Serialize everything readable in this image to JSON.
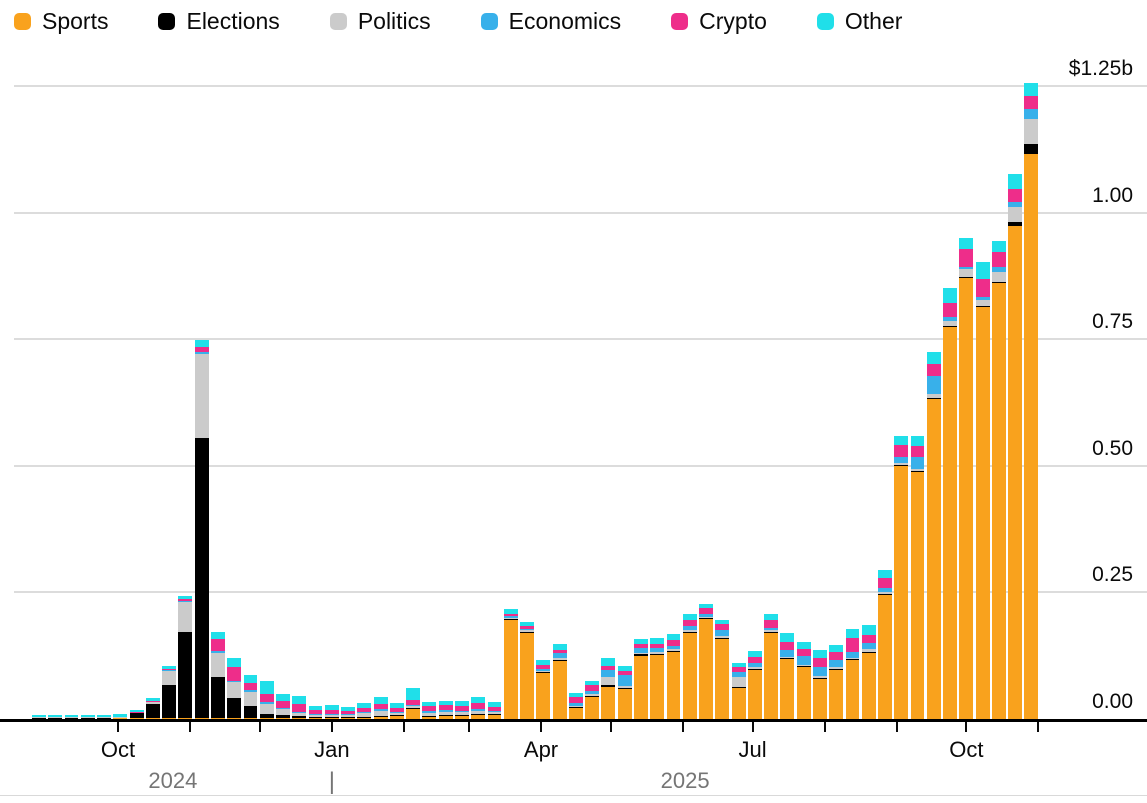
{
  "legend": {
    "items": [
      {
        "label": "Sports",
        "color": "#F9A21D"
      },
      {
        "label": "Elections",
        "color": "#000000"
      },
      {
        "label": "Politics",
        "color": "#CBCBCB"
      },
      {
        "label": "Economics",
        "color": "#38B0EA"
      },
      {
        "label": "Crypto",
        "color": "#EE2D8A"
      },
      {
        "label": "Other",
        "color": "#20DFE9"
      }
    ]
  },
  "chart_data": {
    "type": "bar",
    "stacked": true,
    "unit": "US$ billions per week",
    "ylim": [
      0,
      1.25
    ],
    "grid": "horizontal",
    "legend_position": "top-left",
    "week_start_dates": [
      "2024-08-25",
      "2024-09-01",
      "2024-09-08",
      "2024-09-15",
      "2024-09-22",
      "2024-09-29",
      "2024-10-06",
      "2024-10-13",
      "2024-10-20",
      "2024-10-27",
      "2024-11-03",
      "2024-11-10",
      "2024-11-17",
      "2024-11-24",
      "2024-12-01",
      "2024-12-08",
      "2024-12-15",
      "2024-12-22",
      "2024-12-29",
      "2025-01-05",
      "2025-01-12",
      "2025-01-19",
      "2025-01-26",
      "2025-02-02",
      "2025-02-09",
      "2025-02-16",
      "2025-02-23",
      "2025-03-02",
      "2025-03-09",
      "2025-03-16",
      "2025-03-23",
      "2025-03-30",
      "2025-04-06",
      "2025-04-13",
      "2025-04-20",
      "2025-04-27",
      "2025-05-04",
      "2025-05-11",
      "2025-05-18",
      "2025-05-25",
      "2025-06-01",
      "2025-06-08",
      "2025-06-15",
      "2025-06-22",
      "2025-06-29",
      "2025-07-06",
      "2025-07-13",
      "2025-07-20",
      "2025-07-27",
      "2025-08-03",
      "2025-08-10",
      "2025-08-17",
      "2025-08-24",
      "2025-08-31",
      "2025-09-07",
      "2025-09-14",
      "2025-09-21",
      "2025-09-28",
      "2025-10-05",
      "2025-10-12",
      "2025-10-19",
      "2025-10-26"
    ],
    "series": [
      {
        "name": "Sports",
        "color": "#F9A21D",
        "values": [
          0.001,
          0.001,
          0.001,
          0.001,
          0.001,
          0.001,
          0.001,
          0.001,
          0.001,
          0.001,
          0.002,
          0.002,
          0.002,
          0.002,
          0.002,
          0.002,
          0.002,
          0.001,
          0.001,
          0.001,
          0.002,
          0.004,
          0.006,
          0.02,
          0.005,
          0.006,
          0.006,
          0.008,
          0.008,
          0.196,
          0.171,
          0.091,
          0.115,
          0.022,
          0.043,
          0.064,
          0.061,
          0.125,
          0.128,
          0.133,
          0.171,
          0.198,
          0.159,
          0.061,
          0.097,
          0.171,
          0.119,
          0.103,
          0.079,
          0.097,
          0.117,
          0.131,
          0.245,
          0.5,
          0.489,
          0.632,
          0.775,
          0.871,
          0.815,
          0.861,
          0.974,
          1.115
        ]
      },
      {
        "name": "Elections",
        "color": "#000000",
        "values": [
          0.001,
          0.001,
          0.001,
          0.001,
          0.001,
          0.002,
          0.01,
          0.028,
          0.066,
          0.17,
          0.553,
          0.081,
          0.04,
          0.024,
          0.008,
          0.006,
          0.004,
          0.002,
          0.002,
          0.002,
          0.002,
          0.002,
          0.001,
          0.001,
          0.001,
          0.001,
          0.001,
          0.001,
          0.001,
          0.001,
          0.001,
          0.001,
          0.001,
          0.001,
          0.002,
          0.003,
          0.001,
          0.003,
          0.001,
          0.001,
          0.001,
          0.001,
          0.001,
          0.003,
          0.001,
          0.001,
          0.001,
          0.001,
          0.001,
          0.001,
          0.001,
          0.001,
          0.001,
          0.001,
          0.001,
          0.001,
          0.002,
          0.002,
          0.001,
          0.001,
          0.008,
          0.02
        ]
      },
      {
        "name": "Politics",
        "color": "#CBCBCB",
        "values": [
          0.001,
          0.001,
          0.001,
          0.001,
          0.001,
          0.001,
          0.002,
          0.005,
          0.028,
          0.06,
          0.165,
          0.048,
          0.031,
          0.028,
          0.02,
          0.012,
          0.006,
          0.004,
          0.004,
          0.004,
          0.008,
          0.01,
          0.005,
          0.004,
          0.006,
          0.007,
          0.006,
          0.007,
          0.004,
          0.003,
          0.004,
          0.003,
          0.004,
          0.003,
          0.004,
          0.015,
          0.004,
          0.003,
          0.003,
          0.004,
          0.004,
          0.003,
          0.003,
          0.018,
          0.004,
          0.004,
          0.003,
          0.003,
          0.004,
          0.004,
          0.003,
          0.006,
          0.004,
          0.005,
          0.003,
          0.008,
          0.008,
          0.016,
          0.012,
          0.02,
          0.03,
          0.049
        ]
      },
      {
        "name": "Economics",
        "color": "#38B0EA",
        "values": [
          0.0,
          0.0,
          0.0,
          0.0,
          0.0,
          0.0,
          0.0,
          0.001,
          0.002,
          0.002,
          0.005,
          0.003,
          0.003,
          0.003,
          0.003,
          0.002,
          0.002,
          0.002,
          0.002,
          0.002,
          0.002,
          0.003,
          0.002,
          0.002,
          0.003,
          0.003,
          0.003,
          0.004,
          0.003,
          0.003,
          0.002,
          0.004,
          0.01,
          0.005,
          0.006,
          0.015,
          0.02,
          0.01,
          0.008,
          0.006,
          0.007,
          0.005,
          0.012,
          0.01,
          0.008,
          0.004,
          0.014,
          0.018,
          0.018,
          0.014,
          0.012,
          0.012,
          0.008,
          0.012,
          0.024,
          0.036,
          0.008,
          0.004,
          0.006,
          0.01,
          0.008,
          0.02
        ]
      },
      {
        "name": "Crypto",
        "color": "#EE2D8A",
        "values": [
          0.0,
          0.0,
          0.0,
          0.0,
          0.0,
          0.0,
          0.001,
          0.001,
          0.002,
          0.004,
          0.01,
          0.024,
          0.026,
          0.015,
          0.017,
          0.014,
          0.016,
          0.008,
          0.008,
          0.006,
          0.008,
          0.01,
          0.008,
          0.01,
          0.01,
          0.011,
          0.01,
          0.011,
          0.008,
          0.005,
          0.006,
          0.008,
          0.006,
          0.012,
          0.012,
          0.008,
          0.008,
          0.008,
          0.009,
          0.012,
          0.012,
          0.012,
          0.012,
          0.01,
          0.012,
          0.015,
          0.016,
          0.014,
          0.018,
          0.016,
          0.026,
          0.016,
          0.02,
          0.024,
          0.022,
          0.024,
          0.028,
          0.036,
          0.034,
          0.03,
          0.026,
          0.026
        ]
      },
      {
        "name": "Other",
        "color": "#20DFE9",
        "values": [
          0.004,
          0.005,
          0.005,
          0.005,
          0.005,
          0.005,
          0.004,
          0.006,
          0.005,
          0.006,
          0.013,
          0.014,
          0.019,
          0.015,
          0.025,
          0.014,
          0.015,
          0.008,
          0.01,
          0.008,
          0.01,
          0.014,
          0.01,
          0.025,
          0.008,
          0.008,
          0.01,
          0.012,
          0.009,
          0.009,
          0.008,
          0.009,
          0.013,
          0.009,
          0.009,
          0.016,
          0.01,
          0.009,
          0.01,
          0.011,
          0.012,
          0.009,
          0.009,
          0.009,
          0.012,
          0.012,
          0.016,
          0.014,
          0.017,
          0.015,
          0.018,
          0.019,
          0.016,
          0.016,
          0.019,
          0.023,
          0.03,
          0.02,
          0.035,
          0.021,
          0.03,
          0.026
        ]
      }
    ],
    "y_axis": {
      "ticks": [
        {
          "value": 0.0,
          "label": "0.00"
        },
        {
          "value": 0.25,
          "label": "0.25"
        },
        {
          "value": 0.5,
          "label": "0.50"
        },
        {
          "value": 0.75,
          "label": "0.75"
        },
        {
          "value": 1.0,
          "label": "1.00"
        },
        {
          "value": 1.25,
          "label": "$1.25b"
        }
      ]
    },
    "x_axis": {
      "month_ticks": [
        {
          "date": "2024-10-01",
          "label": "Oct"
        },
        {
          "date": "2024-11-01",
          "label": ""
        },
        {
          "date": "2024-12-01",
          "label": ""
        },
        {
          "date": "2025-01-01",
          "label": "Jan"
        },
        {
          "date": "2025-02-01",
          "label": ""
        },
        {
          "date": "2025-03-01",
          "label": ""
        },
        {
          "date": "2025-04-01",
          "label": "Apr"
        },
        {
          "date": "2025-05-01",
          "label": ""
        },
        {
          "date": "2025-06-01",
          "label": ""
        },
        {
          "date": "2025-07-01",
          "label": "Jul"
        },
        {
          "date": "2025-08-01",
          "label": ""
        },
        {
          "date": "2025-09-01",
          "label": ""
        },
        {
          "date": "2025-10-01",
          "label": "Oct"
        },
        {
          "date": "2025-11-01",
          "label": ""
        }
      ],
      "year_labels": {
        "left": "2024",
        "divider": "|",
        "right": "2025"
      }
    }
  }
}
